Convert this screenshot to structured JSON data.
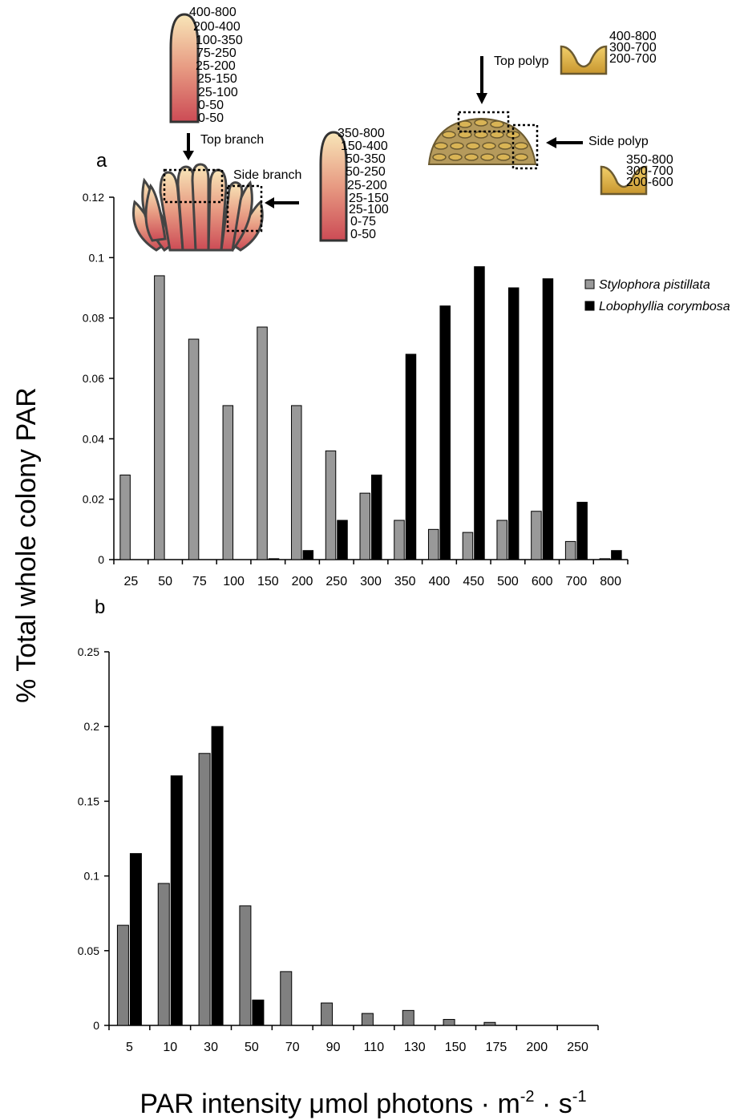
{
  "figure": {
    "y_label": "% Total whole colony PAR",
    "x_label": [
      "PAR intensity μmol photons · m",
      "-2",
      " · s",
      "-1"
    ]
  },
  "illustrations": {
    "top_branch": {
      "label": "Top branch",
      "ranges": [
        "400-800",
        "200-400",
        "100-350",
        "75-250",
        "25-200",
        "25-150",
        "25-100",
        "0-50",
        "0-50"
      ]
    },
    "side_branch": {
      "label": "Side branch",
      "ranges": [
        "350-800",
        "150-400",
        "50-350",
        "50-250",
        "25-200",
        "25-150",
        "25-100",
        "0-75",
        "0-50"
      ]
    },
    "top_polyp": {
      "label": "Top polyp",
      "ranges": [
        "400-800",
        "300-700",
        "200-700"
      ]
    },
    "side_polyp": {
      "label": "Side polyp",
      "ranges": [
        "350-800",
        "300-700",
        "200-600"
      ]
    }
  },
  "chart_data": [
    {
      "type": "bar",
      "label": "a",
      "categories": [
        "25",
        "50",
        "75",
        "100",
        "150",
        "200",
        "250",
        "300",
        "350",
        "400",
        "450",
        "500",
        "600",
        "700",
        "800"
      ],
      "series": [
        {
          "name": "Stylophora pistillata",
          "color": "#999999",
          "values": [
            0.028,
            0.094,
            0.073,
            0.051,
            0.077,
            0.051,
            0.036,
            0.022,
            0.013,
            0.01,
            0.009,
            0.013,
            0.016,
            0.006,
            0.0003
          ]
        },
        {
          "name": "Lobophyllia corymbosa",
          "color": "#000000",
          "values": [
            0,
            0,
            0,
            0,
            0.0003,
            0.003,
            0.013,
            0.028,
            0.068,
            0.084,
            0.097,
            0.09,
            0.093,
            0.019,
            0.003
          ]
        }
      ],
      "ylim": [
        0,
        0.12
      ],
      "yticks": [
        0,
        0.02,
        0.04,
        0.06,
        0.08,
        0.1,
        0.12
      ],
      "legend": "right"
    },
    {
      "type": "bar",
      "label": "b",
      "categories": [
        "5",
        "10",
        "30",
        "50",
        "70",
        "90",
        "110",
        "130",
        "150",
        "175",
        "200",
        "250"
      ],
      "series": [
        {
          "color": "#808080",
          "values": [
            0.067,
            0.095,
            0.182,
            0.08,
            0.036,
            0.015,
            0.008,
            0.01,
            0.004,
            0.002,
            0,
            0
          ]
        },
        {
          "color": "#000000",
          "values": [
            0.115,
            0.167,
            0.2,
            0.017,
            0,
            0,
            0,
            0,
            0,
            0,
            0,
            0
          ]
        }
      ],
      "ylim": [
        0,
        0.25
      ],
      "yticks": [
        0,
        0.05,
        0.1,
        0.15,
        0.2,
        0.25
      ]
    }
  ]
}
